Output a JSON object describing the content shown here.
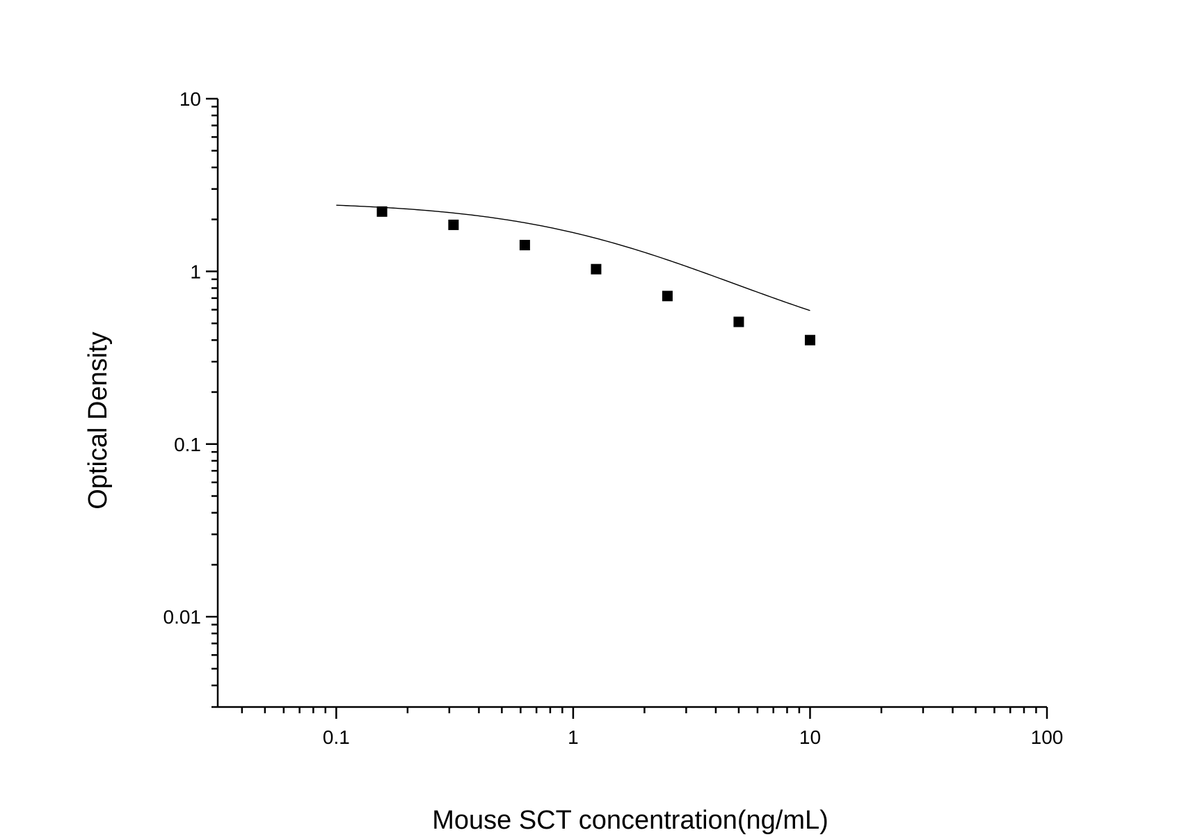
{
  "chart_data": {
    "type": "scatter",
    "title": "",
    "xlabel": "Mouse SCT concentration(ng/mL)",
    "ylabel": "Optical Density",
    "x_scale": "log",
    "y_scale": "log",
    "xlim": [
      0.0316,
      100
    ],
    "ylim": [
      0.003,
      10
    ],
    "x_ticks": [
      {
        "value": 0.1,
        "label": "0.1"
      },
      {
        "value": 1,
        "label": "1"
      },
      {
        "value": 10,
        "label": "10"
      },
      {
        "value": 100,
        "label": "100"
      }
    ],
    "y_ticks": [
      {
        "value": 0.01,
        "label": "0.01"
      },
      {
        "value": 0.1,
        "label": "0.1"
      },
      {
        "value": 1,
        "label": "1"
      },
      {
        "value": 10,
        "label": "10"
      }
    ],
    "grid": false,
    "legend": "none",
    "series": [
      {
        "marker": "square",
        "color": "#000000",
        "x": [
          0.156,
          0.3125,
          0.625,
          1.25,
          2.5,
          5,
          10
        ],
        "y": [
          2.22,
          1.86,
          1.42,
          1.03,
          0.72,
          0.51,
          0.4
        ]
      }
    ],
    "fit_curve": {
      "model": "four-parameter logistic",
      "color": "#000000",
      "x_range": [
        0.1,
        10
      ],
      "params": {
        "A": 2.55,
        "D": 0.28,
        "C": 1.6,
        "B": 1.0
      }
    }
  }
}
